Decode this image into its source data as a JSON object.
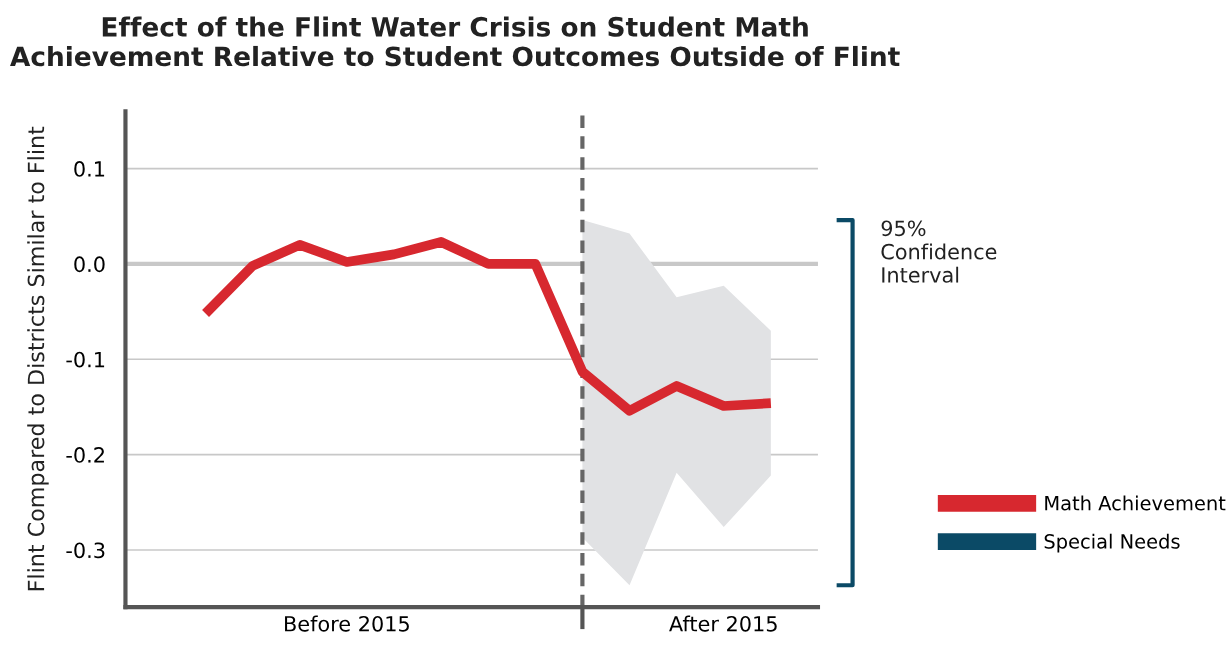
{
  "chart_data": {
    "type": "line",
    "title": "Effect of the Flint Water Crisis on Student Math\nAchievement Relative to Student Outcomes Outside of Flint",
    "ylabel": "Flint Compared to Districts Similar to Flint",
    "categories": [
      null,
      null,
      null,
      "Before 2015",
      null,
      null,
      null,
      null,
      null,
      null,
      null,
      "After 2015",
      null
    ],
    "ylim": [
      -0.36,
      0.16
    ],
    "yticks": [
      {
        "value": 0.1,
        "label": "0.1"
      },
      {
        "value": 0.0,
        "label": "0.0"
      },
      {
        "value": -0.1,
        "label": "-0.1"
      },
      {
        "value": -0.2,
        "label": "-0.2"
      },
      {
        "value": -0.3,
        "label": "-0.3"
      }
    ],
    "series": [
      {
        "name": "Math Achievement",
        "color": "#d7282f",
        "values": [
          -0.052,
          -0.002,
          0.02,
          0.002,
          0.01,
          0.023,
          0.0,
          0.0,
          -0.113,
          -0.154,
          -0.128,
          -0.149,
          -0.146
        ],
        "lower": [
          null,
          null,
          null,
          null,
          null,
          null,
          null,
          null,
          -0.287,
          -0.337,
          -0.219,
          -0.276,
          -0.222
        ],
        "upper": [
          null,
          null,
          null,
          null,
          null,
          null,
          null,
          null,
          0.046,
          0.032,
          -0.035,
          -0.023,
          -0.07
        ]
      },
      {
        "name": "Special Needs",
        "color": "#0b4a66",
        "values": [
          null,
          null,
          null,
          null,
          null,
          null,
          null,
          null,
          null,
          null,
          null,
          null,
          null
        ]
      }
    ],
    "ref_lines": [
      {
        "axis": "y",
        "value": 0.0,
        "color": "#c8c8c8",
        "line_style": "solid"
      }
    ],
    "annotations": [
      "95%\nConfidence\nInterval"
    ],
    "grid": "y",
    "legend": "right",
    "marker": "none",
    "line_style": "solid"
  }
}
